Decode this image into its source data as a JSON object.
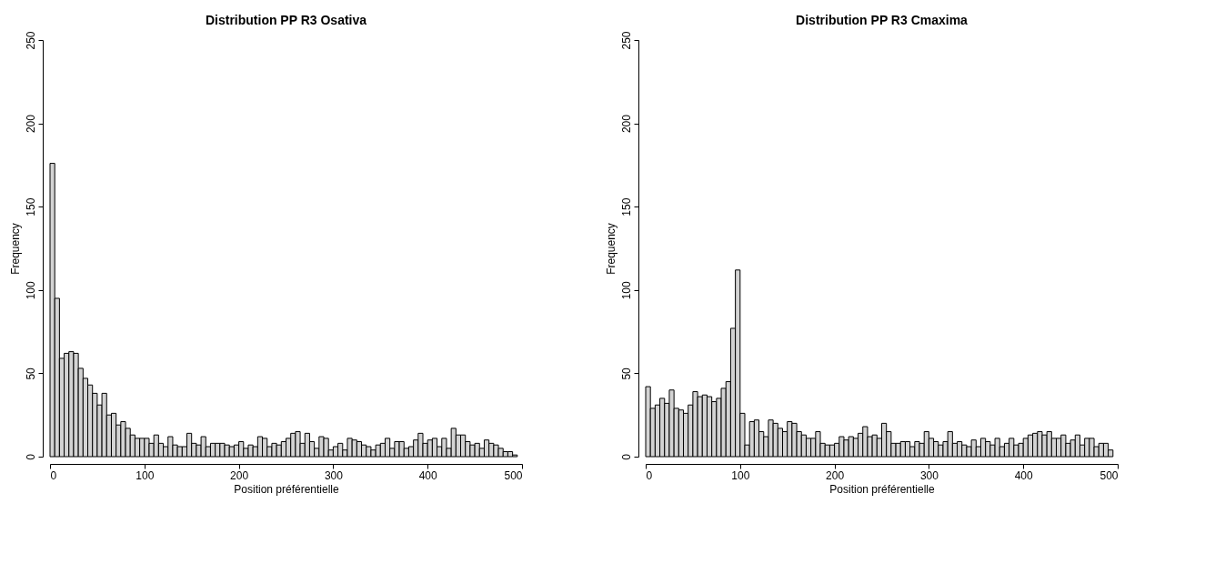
{
  "chart_data": [
    {
      "type": "histogram",
      "title": "Distribution PP R3 Osativa",
      "xlabel": "Position préférentielle",
      "ylabel": "Frequency",
      "color": "#d3d3d3",
      "bins": [
        0,
        5,
        10,
        15,
        20,
        25,
        30,
        35,
        40,
        45,
        50,
        55,
        60,
        65,
        70,
        75,
        80,
        85,
        90,
        95,
        100,
        105,
        110,
        115,
        120,
        125,
        130,
        135,
        140,
        145,
        150,
        155,
        160,
        165,
        170,
        175,
        180,
        185,
        190,
        195,
        200,
        205,
        210,
        215,
        220,
        225,
        230,
        235,
        240,
        245,
        250,
        255,
        260,
        265,
        270,
        275,
        280,
        285,
        290,
        295,
        300,
        305,
        310,
        315,
        320,
        325,
        330,
        335,
        340,
        345,
        350,
        355,
        360,
        365,
        370,
        375,
        380,
        385,
        390,
        395,
        400,
        405,
        410,
        415,
        420,
        425,
        430,
        435,
        440,
        445,
        450,
        455,
        460,
        465,
        470,
        475,
        480,
        485,
        490,
        495
      ],
      "values": [
        176,
        95,
        59,
        62,
        63,
        62,
        53,
        47,
        43,
        38,
        31,
        38,
        25,
        26,
        19,
        21,
        17,
        13,
        11,
        11,
        11,
        8,
        13,
        8,
        6,
        12,
        7,
        6,
        6,
        14,
        8,
        7,
        12,
        6,
        8,
        8,
        8,
        7,
        6,
        7,
        9,
        5,
        7,
        6,
        12,
        11,
        6,
        8,
        7,
        9,
        11,
        14,
        15,
        8,
        14,
        9,
        5,
        12,
        11,
        4,
        6,
        8,
        4,
        11,
        10,
        9,
        7,
        6,
        4,
        7,
        8,
        11,
        5,
        9,
        9,
        5,
        6,
        10,
        14,
        8,
        10,
        11,
        6,
        11,
        5,
        17,
        13,
        13,
        9,
        7,
        8,
        5,
        10,
        8,
        7,
        5,
        3,
        3,
        1
      ],
      "xlim": [
        0,
        500
      ],
      "ylim": [
        0,
        250
      ],
      "xticks": [
        0,
        100,
        200,
        300,
        400,
        500
      ],
      "yticks": [
        0,
        50,
        100,
        150,
        200,
        250
      ]
    },
    {
      "type": "histogram",
      "title": "Distribution PP R3 Cmaxima",
      "xlabel": "Position préférentielle",
      "ylabel": "Frequency",
      "color": "#d3d3d3",
      "bins": [
        0,
        5,
        10,
        15,
        20,
        25,
        30,
        35,
        40,
        45,
        50,
        55,
        60,
        65,
        70,
        75,
        80,
        85,
        90,
        95,
        100,
        105,
        110,
        115,
        120,
        125,
        130,
        135,
        140,
        145,
        150,
        155,
        160,
        165,
        170,
        175,
        180,
        185,
        190,
        195,
        200,
        205,
        210,
        215,
        220,
        225,
        230,
        235,
        240,
        245,
        250,
        255,
        260,
        265,
        270,
        275,
        280,
        285,
        290,
        295,
        300,
        305,
        310,
        315,
        320,
        325,
        330,
        335,
        340,
        345,
        350,
        355,
        360,
        365,
        370,
        375,
        380,
        385,
        390,
        395,
        400,
        405,
        410,
        415,
        420,
        425,
        430,
        435,
        440,
        445,
        450,
        455,
        460,
        465,
        470,
        475,
        480,
        485,
        490,
        495
      ],
      "values": [
        42,
        29,
        31,
        35,
        32,
        40,
        29,
        28,
        26,
        31,
        39,
        36,
        37,
        36,
        33,
        35,
        41,
        45,
        77,
        112,
        26,
        7,
        21,
        22,
        15,
        12,
        22,
        20,
        17,
        15,
        21,
        20,
        15,
        13,
        11,
        11,
        15,
        8,
        7,
        7,
        8,
        12,
        10,
        12,
        11,
        14,
        18,
        12,
        13,
        11,
        20,
        15,
        8,
        8,
        9,
        9,
        6,
        9,
        8,
        15,
        11,
        9,
        7,
        9,
        15,
        8,
        9,
        7,
        6,
        10,
        6,
        11,
        9,
        7,
        11,
        6,
        8,
        11,
        7,
        8,
        11,
        13,
        14,
        15,
        13,
        15,
        11,
        11,
        13,
        8,
        10,
        13,
        7,
        11,
        11,
        6,
        8,
        8,
        4
      ],
      "xlim": [
        0,
        500
      ],
      "ylim": [
        0,
        250
      ],
      "xticks": [
        0,
        100,
        200,
        300,
        400,
        500
      ],
      "yticks": [
        0,
        50,
        100,
        150,
        200,
        250
      ]
    }
  ]
}
